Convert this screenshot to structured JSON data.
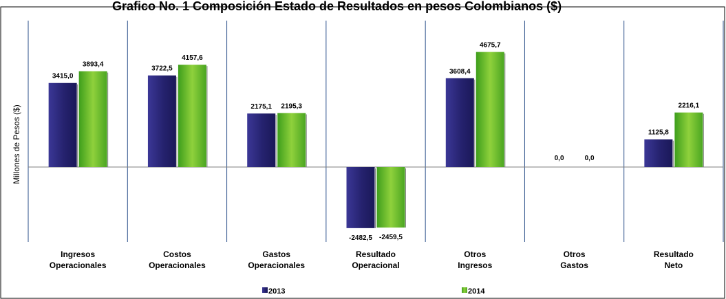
{
  "chart_data": {
    "type": "bar",
    "title": "Grafico No. 1 Composición Estado de Resultados en pesos Colombianos ($)",
    "ylabel": "Millones de Pesos ($)",
    "xlabel": "",
    "categories": [
      [
        "Ingresos",
        "Operacionales"
      ],
      [
        "Costos",
        "Operacionales"
      ],
      [
        "Gastos",
        "Operacionales"
      ],
      [
        "Resultado",
        "Operacional"
      ],
      [
        "Otros",
        "Ingresos"
      ],
      [
        "Otros",
        "Gastos"
      ],
      [
        "Resultado",
        "Neto"
      ]
    ],
    "series": [
      {
        "name": "2013",
        "color": "#2e2a7e",
        "values": [
          3415.0,
          3722.5,
          2175.1,
          -2482.5,
          3608.4,
          0.0,
          1125.8
        ],
        "labels": [
          "3415,0",
          "3722,5",
          "2175,1",
          "-2482,5",
          "3608,4",
          "0,0",
          "1125,8"
        ]
      },
      {
        "name": "2014",
        "color": "#5cb82e",
        "values": [
          3893.4,
          4157.6,
          2195.3,
          -2459.5,
          4675.7,
          0.0,
          2216.1
        ],
        "labels": [
          "3893,4",
          "4157,6",
          "2195,3",
          "-2459,5",
          "4675,7",
          "0,0",
          "2216,1"
        ]
      }
    ],
    "ylim": [
      -3000,
      5300
    ],
    "grid": false,
    "legend": "bottom"
  }
}
